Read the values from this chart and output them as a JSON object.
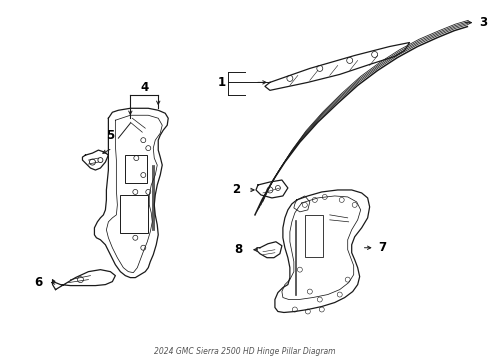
{
  "title": "2024 GMC Sierra 2500 HD Hinge Pillar Diagram",
  "bg_color": "#ffffff",
  "line_color": "#1a1a1a",
  "label_color": "#000000",
  "figsize": [
    4.9,
    3.6
  ],
  "dpi": 100
}
